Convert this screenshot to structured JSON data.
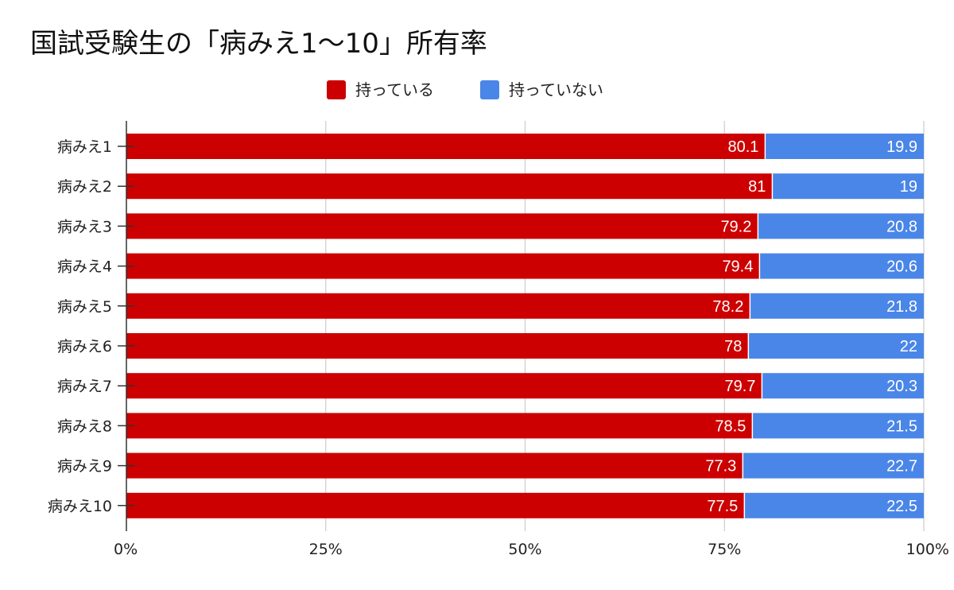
{
  "chart_data": {
    "type": "bar",
    "orientation": "horizontal",
    "stacked": "percent",
    "title": "国試受験生の「病みえ1〜10」所有率",
    "categories": [
      "病みえ1",
      "病みえ2",
      "病みえ3",
      "病みえ4",
      "病みえ5",
      "病みえ6",
      "病みえ7",
      "病みえ8",
      "病みえ9",
      "病みえ10"
    ],
    "series": [
      {
        "name": "持っている",
        "color": "#cc0000",
        "values": [
          80.1,
          81,
          79.2,
          79.4,
          78.2,
          78,
          79.7,
          78.5,
          77.3,
          77.5
        ]
      },
      {
        "name": "持っていない",
        "color": "#4a86e8",
        "values": [
          19.9,
          19,
          20.8,
          20.6,
          21.8,
          22,
          20.3,
          21.5,
          22.7,
          22.5
        ]
      }
    ],
    "x_ticks": [
      "0%",
      "25%",
      "50%",
      "75%",
      "100%"
    ],
    "xlim": [
      0,
      100
    ],
    "grid": true,
    "legend_position": "top-center",
    "data_labels": true
  }
}
